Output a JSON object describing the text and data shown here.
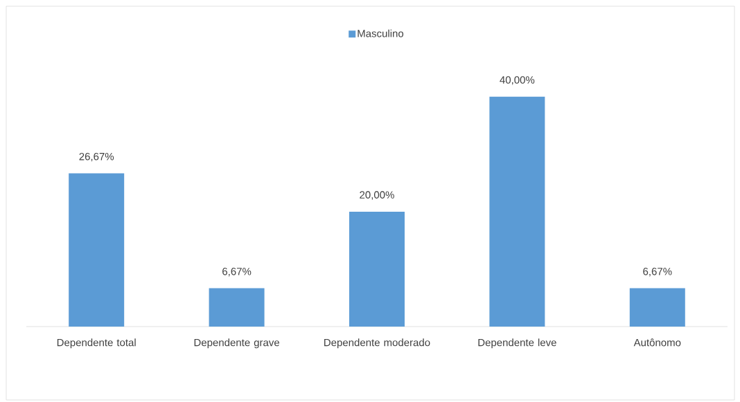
{
  "chart_data": {
    "type": "bar",
    "categories": [
      "Dependente total",
      "Dependente grave",
      "Dependente moderado",
      "Dependente leve",
      "Autônomo"
    ],
    "series": [
      {
        "name": "Masculino",
        "color": "#5b9bd5",
        "values": [
          26.67,
          6.67,
          20.0,
          40.0,
          6.67
        ],
        "value_labels": [
          "26,67%",
          "6,67%",
          "20,00%",
          "40,00%",
          "6,67%"
        ]
      }
    ],
    "legend": "top"
  }
}
